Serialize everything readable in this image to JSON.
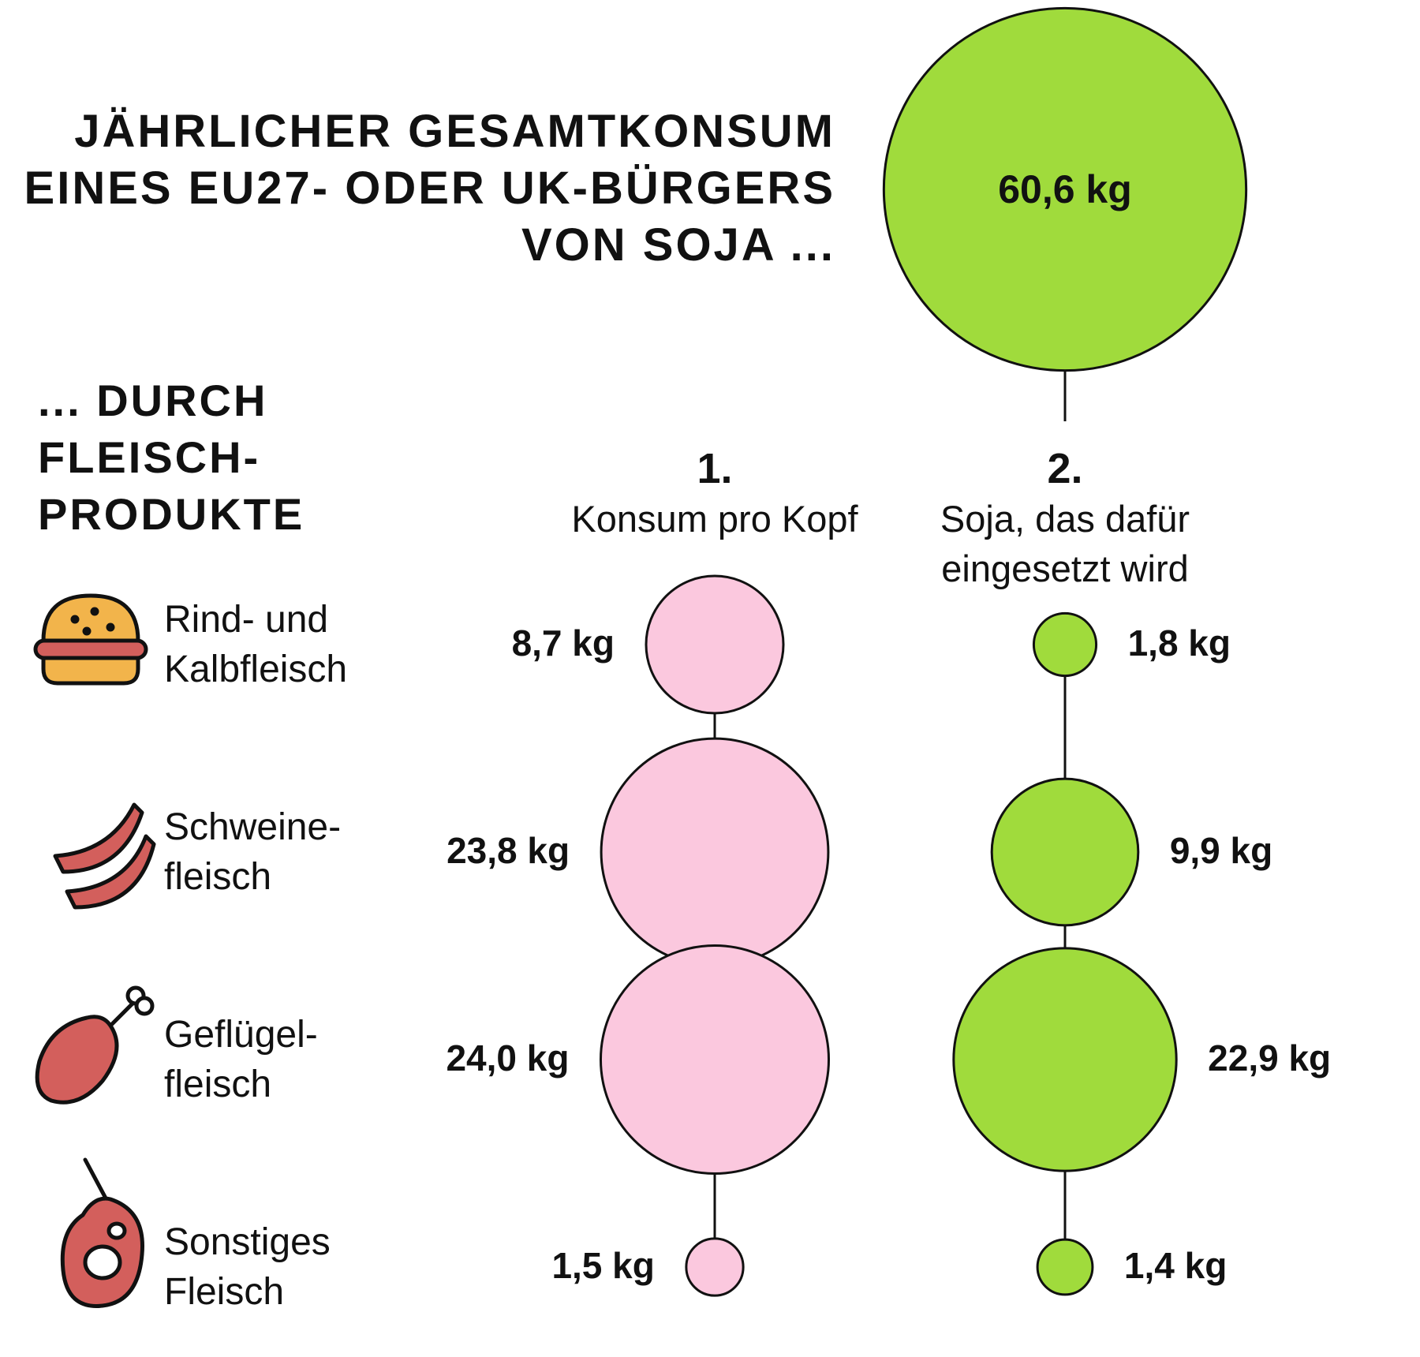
{
  "chart_data": {
    "type": "bubble",
    "title": "JÄHRLICHER GESAMTKONSUM\nEINES EU27- ODER UK-BÜRGERS\nVON SOJA ...",
    "total": {
      "value": 60.6,
      "label": "60,6 kg"
    },
    "subtitle": "... DURCH\nFLEISCH-\nPRODUKTE",
    "categories": [
      "Rind- und\nKalbfleisch",
      "Schweine-\nfleisch",
      "Geflügel-\nfleisch",
      "Sonstiges\nFleisch"
    ],
    "series": [
      {
        "number": "1.",
        "name": "Konsum pro Kopf",
        "color": "#fbc8de",
        "values": [
          8.7,
          23.8,
          24.0,
          1.5
        ],
        "value_labels": [
          "8,7 kg",
          "23,8 kg",
          "24,0 kg",
          "1,5 kg"
        ]
      },
      {
        "number": "2.",
        "name": "Soja, das dafür\neingesetzt wird",
        "color": "#a0db3c",
        "values": [
          1.8,
          9.9,
          22.9,
          1.4
        ],
        "value_labels": [
          "1,8 kg",
          "9,9 kg",
          "22,9 kg",
          "1,4 kg"
        ]
      }
    ]
  }
}
